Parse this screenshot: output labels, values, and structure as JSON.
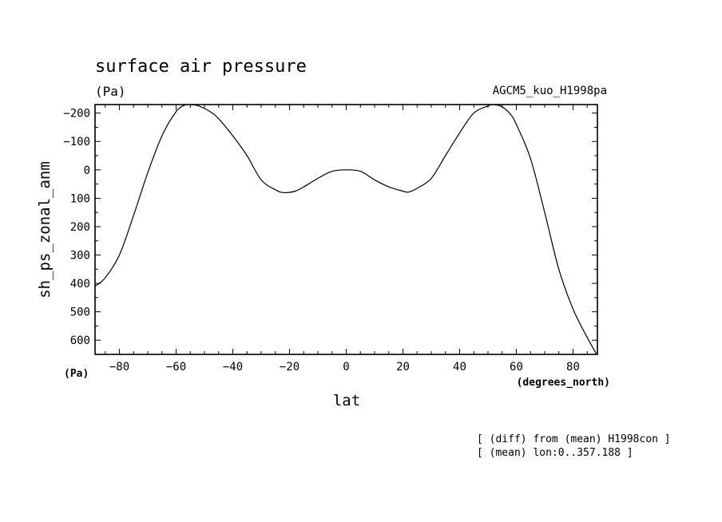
{
  "chart_data": {
    "type": "line",
    "title": "surface air pressure",
    "units_label": "(Pa)",
    "dataset_label": "AGCM5_kuo_H1998pa",
    "xlabel": "lat",
    "x_units": "(degrees_north)",
    "ylabel": "sh_ps_zonal_anm",
    "y_units": "(Pa)",
    "y_inverted": true,
    "xlim": [
      -88.6,
      88.6
    ],
    "ylim": [
      -230,
      650
    ],
    "x_ticks": [
      -80,
      -60,
      -40,
      -20,
      0,
      20,
      40,
      60,
      80
    ],
    "x_tick_labels": [
      "−80",
      "−60",
      "−40",
      "−20",
      "0",
      "20",
      "40",
      "60",
      "80"
    ],
    "y_ticks": [
      -200,
      -100,
      0,
      100,
      200,
      300,
      400,
      500,
      600
    ],
    "y_tick_labels": [
      "−200",
      "−100",
      "0",
      "100",
      "200",
      "300",
      "400",
      "500",
      "600"
    ],
    "series": [
      {
        "x": [
          -88.6,
          -85,
          -80,
          -75,
          -70,
          -65,
          -60,
          -57,
          -55,
          -52,
          -48,
          -45,
          -40,
          -35,
          -30,
          -25,
          -22,
          -18,
          -15,
          -10,
          -5,
          0,
          5,
          10,
          15,
          20,
          22,
          25,
          30,
          35,
          40,
          45,
          50,
          52,
          55,
          58,
          60,
          65,
          70,
          75,
          80,
          85,
          88.6
        ],
        "y": [
          410,
          380,
          300,
          160,
          10,
          -120,
          -205,
          -228,
          -230,
          -225,
          -205,
          -180,
          -120,
          -50,
          35,
          70,
          80,
          75,
          60,
          30,
          5,
          0,
          5,
          35,
          60,
          75,
          78,
          65,
          30,
          -50,
          -130,
          -200,
          -225,
          -230,
          -222,
          -195,
          -160,
          -40,
          150,
          350,
          490,
          590,
          655
        ]
      }
    ],
    "notes": [
      "[ (diff) from (mean) H1998con ]",
      "[ (mean) lon:0..357.188 ]"
    ]
  }
}
